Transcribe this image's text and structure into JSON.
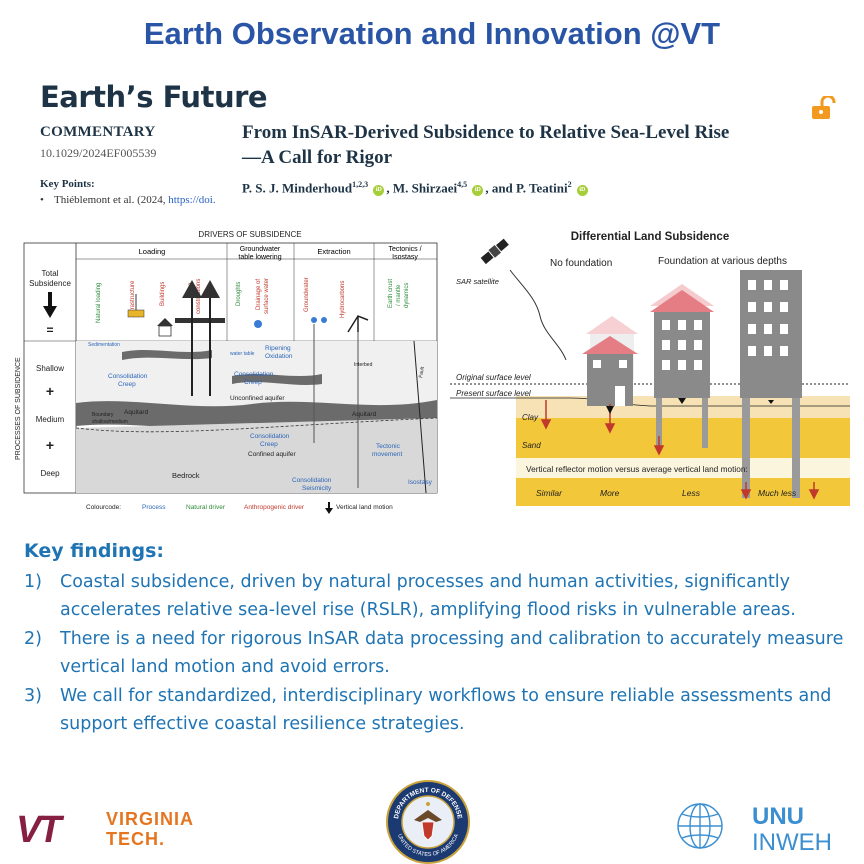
{
  "banner": {
    "title": "Earth Observation and Innovation @VT"
  },
  "paper": {
    "journal": "Earth’s Future",
    "category": "COMMENTARY",
    "doi": "10.1029/2024EF005539",
    "key_points_label": "Key Points:",
    "key_point_1": "Thiéblemont et al. (2024,",
    "key_point_1_link": "https://doi.",
    "title_line1": "From InSAR-Derived Subsidence to Relative Sea-Level Rise",
    "title_line2": "—A Call for Rigor",
    "author1": "P. S. J. Minderhoud",
    "author1_sup": "1,2,3",
    "author2": ", M. Shirzaei",
    "author2_sup": "4,5",
    "author3": ", and P. Teatini",
    "author3_sup": "2",
    "orcid": "iD"
  },
  "figure_left": {
    "header": "DRIVERS OF SUBSIDENCE",
    "side_label": "PROCESSES OF SUBSIDENCE",
    "groups": {
      "loading": "Loading",
      "groundwater": "Groundwater",
      "groundwater2": "table lowering",
      "extraction": "Extraction",
      "tectonics": "Tectonics /",
      "tectonics2": "Isostasy"
    },
    "drivers": {
      "natural_loading": "Natural loading",
      "infrastructure": "Infrastructure",
      "buildings": "Buildings",
      "large": "Large",
      "large2": "constructions",
      "droughts": "Droughts",
      "drainage": "Drainage of",
      "drainage2": "surface water",
      "groundwater": "Groundwater",
      "hydrocarbons": "Hydrocarbons",
      "crust": "Earth crust",
      "crust2": "/ mantle",
      "crust3": "dynamics"
    },
    "rows": {
      "total1": "Total",
      "total2": "Subsidence",
      "equals": "=",
      "shallow": "Shallow",
      "plus1": "+",
      "medium": "Medium",
      "plus2": "+",
      "deep": "Deep"
    },
    "labels": {
      "sedimentation": "Sedimentation",
      "water_table": "water table",
      "ripening": "Ripening",
      "oxidation": "Oxidation",
      "consolidation": "Consolidation",
      "creep": "Creep",
      "unconfined": "Unconfined aquifer",
      "aquitard": "Aquitard",
      "boundary": "Boundary",
      "boundary2": "shallow/medium",
      "confined": "Confined aquifer",
      "tectonic": "Tectonic",
      "movement": "movement",
      "bedrock": "Bedrock",
      "seismicity": "Seismicity",
      "isostasy": "Isostasy",
      "interbed": "Interbed",
      "fault": "Fault"
    },
    "legend": {
      "colourcode": "Colourcode:",
      "process": "Process",
      "natural": "Natural driver",
      "anthropogenic": "Anthropogenic driver",
      "vlm": "Vertical land motion"
    },
    "colors": {
      "process": "#2c66b8",
      "natural": "#2e8b3a",
      "anthropogenic": "#c0392b"
    }
  },
  "figure_right": {
    "title": "Differential Land Subsidence",
    "no_foundation": "No foundation",
    "foundation": "Foundation at various depths",
    "sar": "SAR satellite",
    "original_level": "Original surface level",
    "present_level": "Present surface level",
    "clay": "Clay",
    "sand": "Sand",
    "vertical_reflector": "Vertical reflector motion versus average vertical land motion:",
    "similar": "Similar",
    "more": "More",
    "less": "Less",
    "much_less": "Much less"
  },
  "findings": {
    "title": "Key findings:",
    "items": [
      {
        "num": "1)",
        "text": "Coastal subsidence, driven by natural processes and human activities, significantly accelerates relative sea-level rise (RSLR), amplifying flood risks in vulnerable areas."
      },
      {
        "num": "2)",
        "text": "There is a need for rigorous InSAR data processing and calibration to accurately measure vertical land motion and avoid errors."
      },
      {
        "num": "3)",
        "text": "We call for standardized, interdisciplinary workflows to ensure reliable assessments and support effective coastal resilience strategies."
      }
    ]
  },
  "logos": {
    "vt_mark": "VT",
    "vt_line1": "VIRGINIA",
    "vt_line2": "TECH.",
    "dod_top": "DEPARTMENT OF DEFENSE",
    "dod_bottom": "UNITED STATES OF AMERICA",
    "unu_line1": "UNU",
    "unu_line2": "INWEH"
  },
  "colors": {
    "banner": "#2a55a6",
    "findings": "#1f74b4",
    "vt_maroon": "#861f41",
    "vt_orange": "#e5751f",
    "unu_blue": "#3b8fd1"
  },
  "icons": {
    "lock": "open-lock-icon",
    "satellite": "satellite-icon",
    "orcid": "orcid-icon"
  }
}
